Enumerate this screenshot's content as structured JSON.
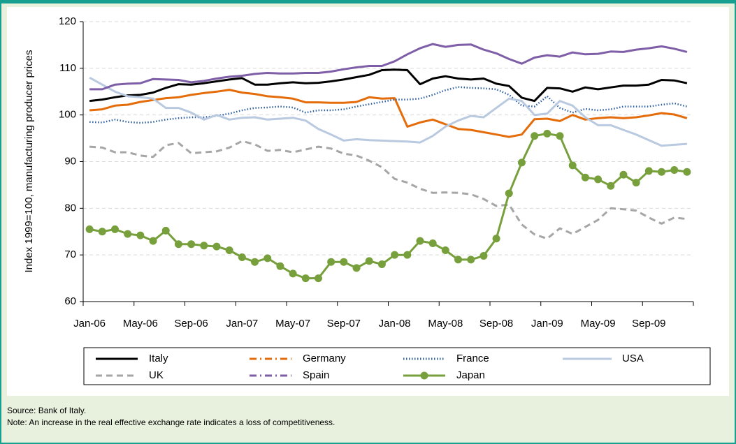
{
  "chart_data": {
    "type": "line",
    "y_label": "Index 1999=100, manufacturing producer prices",
    "categories": [
      "Jan-06",
      null,
      null,
      null,
      "May-06",
      null,
      null,
      null,
      "Sep-06",
      null,
      null,
      null,
      "Jan-07",
      null,
      null,
      null,
      "May-07",
      null,
      null,
      null,
      "Sep-07",
      null,
      null,
      null,
      "Jan-08",
      null,
      null,
      null,
      "May-08",
      null,
      null,
      null,
      "Sep-08",
      null,
      null,
      null,
      "Jan-09",
      null,
      null,
      null,
      "May-09",
      null,
      null,
      null,
      "Sep-09",
      null,
      null,
      null
    ],
    "ylim": [
      60,
      120
    ],
    "yticks": [
      60,
      70,
      80,
      90,
      100,
      110,
      120
    ],
    "grid": true,
    "series": [
      {
        "name": "Italy",
        "color": "#000000",
        "dash": "solid",
        "values": [
          103.0,
          103.3,
          103.8,
          104.2,
          104.3,
          104.8,
          105.8,
          106.6,
          106.5,
          106.8,
          107.2,
          107.6,
          107.9,
          106.5,
          106.5,
          106.8,
          107.0,
          106.8,
          106.9,
          107.2,
          107.6,
          108.1,
          108.6,
          109.6,
          109.7,
          109.6,
          106.6,
          107.8,
          108.3,
          107.8,
          107.6,
          107.8,
          106.7,
          106.2,
          103.7,
          103.0,
          105.8,
          105.7,
          105.0,
          105.9,
          105.5,
          105.9,
          106.3,
          106.3,
          106.5,
          107.5,
          107.4,
          106.8
        ]
      },
      {
        "name": "Germany",
        "color": "#e46c0a",
        "dash": "solid",
        "legend_dash": "dashdot",
        "values": [
          101.0,
          101.2,
          102.0,
          102.2,
          102.8,
          103.2,
          103.6,
          103.8,
          104.3,
          104.7,
          105.0,
          105.4,
          104.8,
          104.5,
          104.0,
          103.8,
          103.5,
          102.7,
          102.7,
          102.6,
          102.6,
          102.8,
          103.8,
          103.5,
          103.6,
          97.5,
          98.4,
          99.0,
          98.0,
          97.0,
          96.8,
          96.3,
          95.8,
          95.3,
          95.8,
          99.1,
          99.2,
          98.7,
          100.0,
          99.0,
          99.3,
          99.5,
          99.3,
          99.5,
          99.9,
          100.4,
          100.1,
          99.3
        ]
      },
      {
        "name": "France",
        "color": "#2e5fa0",
        "dash": "dotted",
        "values": [
          98.5,
          98.4,
          99.0,
          98.5,
          98.3,
          98.5,
          99.0,
          99.3,
          99.5,
          99.5,
          99.8,
          100.3,
          101.0,
          101.5,
          101.6,
          101.8,
          101.6,
          100.5,
          101.0,
          101.0,
          101.2,
          101.8,
          102.3,
          102.8,
          103.3,
          103.3,
          103.5,
          104.3,
          105.3,
          106.0,
          105.8,
          105.7,
          105.5,
          104.3,
          102.0,
          101.8,
          104.0,
          101.5,
          100.5,
          101.3,
          101.0,
          101.2,
          101.8,
          101.8,
          101.8,
          102.2,
          102.5,
          101.8
        ]
      },
      {
        "name": "USA",
        "color": "#b9c9e0",
        "dash": "solid",
        "values": [
          108.0,
          106.5,
          105.0,
          104.0,
          103.8,
          103.5,
          101.5,
          101.5,
          100.5,
          99.0,
          100.0,
          99.0,
          99.4,
          99.5,
          99.0,
          99.2,
          99.4,
          98.8,
          97.0,
          95.8,
          94.5,
          94.8,
          94.6,
          94.5,
          94.4,
          94.3,
          94.1,
          95.5,
          97.5,
          98.8,
          99.8,
          99.5,
          101.5,
          103.5,
          103.0,
          100.0,
          100.3,
          103.0,
          102.0,
          99.5,
          97.8,
          97.8,
          96.8,
          95.8,
          94.6,
          93.4,
          93.6,
          93.8
        ]
      },
      {
        "name": "UK",
        "color": "#a6a6a6",
        "dash": "dashed",
        "values": [
          93.2,
          93.0,
          92.0,
          92.0,
          91.3,
          91.0,
          93.5,
          94.0,
          91.8,
          92.0,
          92.2,
          93.0,
          94.4,
          93.7,
          92.3,
          92.5,
          92.0,
          92.6,
          93.2,
          92.8,
          91.7,
          91.3,
          90.2,
          88.8,
          86.3,
          85.5,
          84.2,
          83.3,
          83.4,
          83.3,
          83.0,
          82.0,
          80.5,
          80.8,
          76.5,
          74.4,
          73.5,
          75.7,
          74.5,
          76.0,
          77.5,
          80.0,
          79.8,
          79.5,
          78.0,
          76.7,
          78.0,
          77.7
        ]
      },
      {
        "name": "Spain",
        "color": "#7f5ea8",
        "dash": "solid",
        "legend_dash": "dashdot",
        "values": [
          105.5,
          105.5,
          106.5,
          106.7,
          106.8,
          107.7,
          107.6,
          107.5,
          107.0,
          107.3,
          107.8,
          108.2,
          108.4,
          108.8,
          109.0,
          108.9,
          108.9,
          109.0,
          109.0,
          109.3,
          109.8,
          110.2,
          110.5,
          110.5,
          111.5,
          113.0,
          114.3,
          115.2,
          114.6,
          115.0,
          115.1,
          114.0,
          113.2,
          112.0,
          111.0,
          112.3,
          112.8,
          112.5,
          113.4,
          113.0,
          113.1,
          113.6,
          113.5,
          114.0,
          114.3,
          114.7,
          114.2,
          113.5
        ]
      },
      {
        "name": "Japan",
        "color": "#77a03c",
        "dash": "solid",
        "marker": "circle",
        "values": [
          75.5,
          75.0,
          75.5,
          74.5,
          74.2,
          73.0,
          75.2,
          72.3,
          72.3,
          72.0,
          71.8,
          71.0,
          69.5,
          68.5,
          69.3,
          67.6,
          66.0,
          65.0,
          65.0,
          68.5,
          68.5,
          67.2,
          68.7,
          68.0,
          70.0,
          70.0,
          73.0,
          72.5,
          71.0,
          69.0,
          69.0,
          69.8,
          73.5,
          83.2,
          89.8,
          95.5,
          96.0,
          95.5,
          89.2,
          86.6,
          86.2,
          84.8,
          87.2,
          85.5,
          88.0,
          87.8,
          88.2,
          87.8
        ]
      }
    ],
    "source": "Source: Bank of Italy.",
    "note": "Note: An increase in the real effective exchange rate indicates a loss of competitiveness."
  }
}
